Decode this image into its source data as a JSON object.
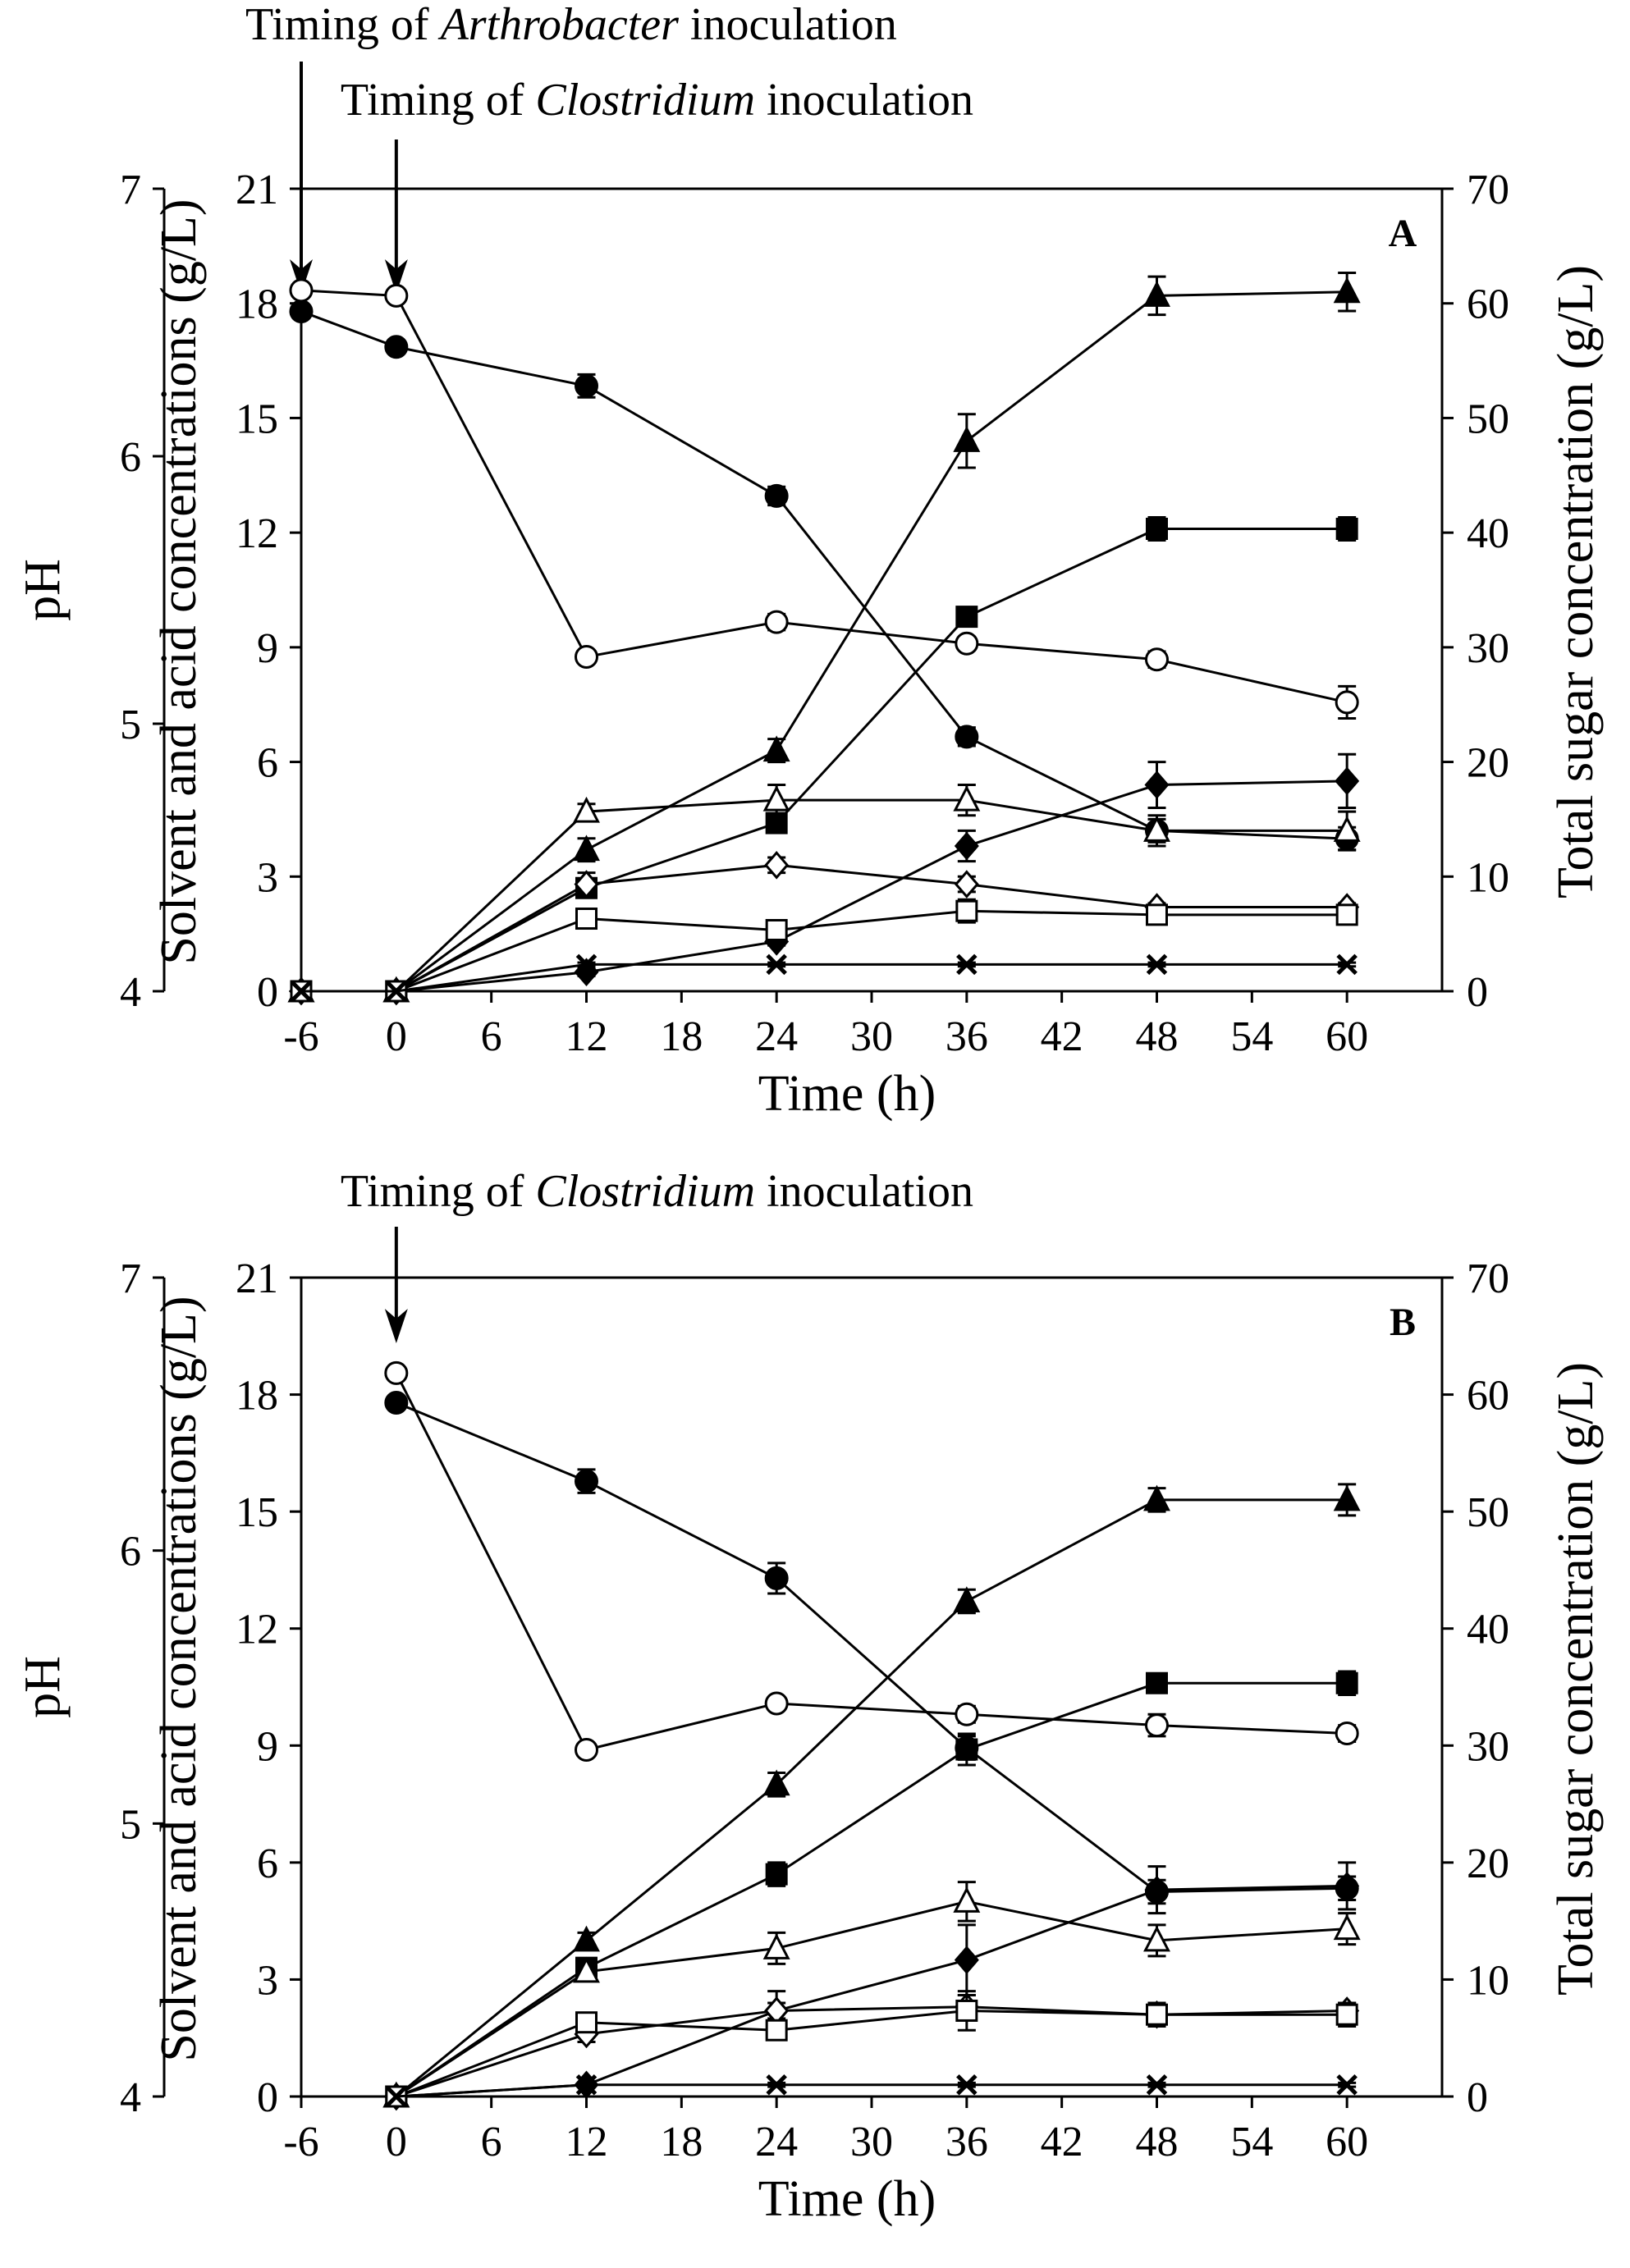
{
  "figure": {
    "panels": [
      {
        "id": "A",
        "panel_label": "A",
        "annotations": [
          {
            "text_before": "Timing of ",
            "text_italic": "Arthrobacter",
            "text_after": " inoculation",
            "x": -6
          },
          {
            "text_before": "Timing of ",
            "text_italic": "Clostridium",
            "text_after": " inoculation",
            "x": 0
          }
        ]
      },
      {
        "id": "B",
        "panel_label": "B",
        "annotations": [
          {
            "text_before": "Timing of ",
            "text_italic": "Clostridium",
            "text_after": " inoculation",
            "x": 0
          }
        ]
      }
    ]
  },
  "chart_data": [
    {
      "type": "line",
      "panel": "A",
      "xlabel": "Time (h)",
      "ylabel_left_outer": "pH",
      "ylabel_left_inner": "Solvent and acid concentrations (g/L)",
      "ylabel_right": "Total sugar concentration (g/L)",
      "xlim": [
        -6,
        66
      ],
      "xticks": [
        -6,
        0,
        6,
        12,
        18,
        24,
        30,
        36,
        42,
        48,
        54,
        60
      ],
      "ylim_ph": [
        4,
        7
      ],
      "yticks_ph": [
        4,
        5,
        6,
        7
      ],
      "ylim_conc": [
        0,
        21
      ],
      "yticks_conc": [
        0,
        3,
        6,
        9,
        12,
        15,
        18,
        21
      ],
      "ylim_sugar": [
        0,
        70
      ],
      "yticks_sugar": [
        0,
        10,
        20,
        30,
        40,
        50,
        60,
        70
      ],
      "series": [
        {
          "marker": "circle-filled",
          "axis": "sugar",
          "x": [
            -6,
            0,
            12,
            24,
            36,
            48,
            60
          ],
          "y": [
            59.3,
            56.2,
            52.8,
            43.2,
            22.2,
            14.0,
            13.3
          ],
          "err": [
            0.5,
            0.5,
            1.0,
            0.8,
            0.8,
            1.0,
            1.0
          ]
        },
        {
          "marker": "circle-open",
          "axis": "ph",
          "x": [
            -6,
            0,
            12,
            24,
            36,
            48,
            60
          ],
          "y": [
            6.62,
            6.6,
            5.25,
            5.38,
            5.3,
            5.24,
            5.08
          ],
          "err": [
            0.01,
            0.02,
            0.02,
            0.03,
            0.02,
            0.03,
            0.06
          ]
        },
        {
          "marker": "triangle-filled",
          "axis": "conc",
          "x": [
            -6,
            0,
            12,
            24,
            36,
            48,
            60
          ],
          "y": [
            0,
            0,
            3.7,
            6.3,
            14.4,
            18.2,
            18.3
          ],
          "err": [
            0,
            0,
            0.3,
            0.3,
            0.7,
            0.5,
            0.5
          ]
        },
        {
          "marker": "square-filled",
          "axis": "conc",
          "x": [
            -6,
            0,
            12,
            24,
            36,
            48,
            60
          ],
          "y": [
            0,
            0,
            2.7,
            4.4,
            9.8,
            12.1,
            12.1
          ],
          "err": [
            0,
            0,
            0.2,
            0.2,
            0.2,
            0.3,
            0.3
          ]
        },
        {
          "marker": "diamond-filled",
          "axis": "conc",
          "x": [
            -6,
            0,
            12,
            24,
            36,
            48,
            60
          ],
          "y": [
            0,
            0,
            0.5,
            1.3,
            3.8,
            5.4,
            5.5
          ],
          "err": [
            0,
            0,
            0.1,
            0.1,
            0.4,
            0.6,
            0.7
          ]
        },
        {
          "marker": "triangle-open",
          "axis": "conc",
          "x": [
            -6,
            0,
            12,
            24,
            36,
            48,
            60
          ],
          "y": [
            0,
            0,
            4.7,
            5.0,
            5.0,
            4.2,
            4.2
          ],
          "err": [
            0,
            0,
            0.2,
            0.4,
            0.4,
            0.4,
            0.5
          ]
        },
        {
          "marker": "diamond-open",
          "axis": "conc",
          "x": [
            -6,
            0,
            12,
            24,
            36,
            48,
            60
          ],
          "y": [
            0,
            0,
            2.8,
            3.3,
            2.8,
            2.2,
            2.2
          ],
          "err": [
            0,
            0,
            0.3,
            0.2,
            0.2,
            0.1,
            0.1
          ]
        },
        {
          "marker": "square-open",
          "axis": "conc",
          "x": [
            -6,
            0,
            12,
            24,
            36,
            48,
            60
          ],
          "y": [
            0,
            0,
            1.9,
            1.6,
            2.1,
            2.0,
            2.0
          ],
          "err": [
            0,
            0,
            0.2,
            0.2,
            0.3,
            0.2,
            0.2
          ]
        },
        {
          "marker": "x",
          "axis": "conc",
          "x": [
            -6,
            0,
            12,
            24,
            36,
            48,
            60
          ],
          "y": [
            0,
            0,
            0.7,
            0.7,
            0.7,
            0.7,
            0.7
          ],
          "err": [
            0,
            0,
            0.05,
            0.05,
            0.05,
            0.05,
            0.05
          ]
        }
      ]
    },
    {
      "type": "line",
      "panel": "B",
      "xlabel": "Time (h)",
      "ylabel_left_outer": "pH",
      "ylabel_left_inner": "Solvent and acid concentrations (g/L)",
      "ylabel_right": "Total sugar concentration (g/L)",
      "xlim": [
        -6,
        66
      ],
      "xticks": [
        -6,
        0,
        6,
        12,
        18,
        24,
        30,
        36,
        42,
        48,
        54,
        60
      ],
      "ylim_ph": [
        4,
        7
      ],
      "yticks_ph": [
        4,
        5,
        6,
        7
      ],
      "ylim_conc": [
        0,
        21
      ],
      "yticks_conc": [
        0,
        3,
        6,
        9,
        12,
        15,
        18,
        21
      ],
      "ylim_sugar": [
        0,
        70
      ],
      "yticks_sugar": [
        0,
        10,
        20,
        30,
        40,
        50,
        60,
        70
      ],
      "series": [
        {
          "marker": "circle-filled",
          "axis": "sugar",
          "x": [
            0,
            12,
            24,
            36,
            48,
            60
          ],
          "y": [
            59.3,
            52.6,
            44.3,
            29.8,
            17.5,
            17.8
          ],
          "err": [
            0.5,
            1.0,
            1.3,
            1.0,
            1.0,
            1.0
          ]
        },
        {
          "marker": "circle-open",
          "axis": "ph",
          "x": [
            0,
            12,
            24,
            36,
            48,
            60
          ],
          "y": [
            6.65,
            5.27,
            5.44,
            5.4,
            5.36,
            5.33
          ],
          "err": [
            0.02,
            0.02,
            0.02,
            0.03,
            0.04,
            0.03
          ]
        },
        {
          "marker": "triangle-filled",
          "axis": "conc",
          "x": [
            0,
            12,
            24,
            36,
            48,
            60
          ],
          "y": [
            0,
            4.0,
            8.0,
            12.7,
            15.3,
            15.3
          ],
          "err": [
            0,
            0.2,
            0.3,
            0.3,
            0.3,
            0.4
          ]
        },
        {
          "marker": "square-filled",
          "axis": "conc",
          "x": [
            0,
            12,
            24,
            36,
            48,
            60
          ],
          "y": [
            0,
            3.3,
            5.7,
            8.9,
            10.6,
            10.6
          ],
          "err": [
            0,
            0.2,
            0.3,
            0.4,
            0.2,
            0.3
          ]
        },
        {
          "marker": "diamond-filled",
          "axis": "conc",
          "x": [
            0,
            12,
            24,
            36,
            48,
            60
          ],
          "y": [
            0,
            0.3,
            2.2,
            3.5,
            5.3,
            5.4
          ],
          "err": [
            0,
            0.05,
            0.5,
            0.9,
            0.6,
            0.6
          ]
        },
        {
          "marker": "triangle-open",
          "axis": "conc",
          "x": [
            0,
            12,
            24,
            36,
            48,
            60
          ],
          "y": [
            0,
            3.2,
            3.8,
            5.0,
            4.0,
            4.3
          ],
          "err": [
            0,
            0.2,
            0.4,
            0.5,
            0.4,
            0.4
          ]
        },
        {
          "marker": "diamond-open",
          "axis": "conc",
          "x": [
            0,
            12,
            24,
            36,
            48,
            60
          ],
          "y": [
            0,
            1.6,
            2.2,
            2.3,
            2.1,
            2.2
          ],
          "err": [
            0,
            0.2,
            0.2,
            0.3,
            0.2,
            0.2
          ]
        },
        {
          "marker": "square-open",
          "axis": "conc",
          "x": [
            0,
            12,
            24,
            36,
            48,
            60
          ],
          "y": [
            0,
            1.9,
            1.7,
            2.2,
            2.1,
            2.1
          ],
          "err": [
            0,
            0.2,
            0.2,
            0.5,
            0.3,
            0.3
          ]
        },
        {
          "marker": "x",
          "axis": "conc",
          "x": [
            0,
            12,
            24,
            36,
            48,
            60
          ],
          "y": [
            0,
            0.3,
            0.3,
            0.3,
            0.3,
            0.3
          ],
          "err": [
            0,
            0.05,
            0.05,
            0.05,
            0.05,
            0.05
          ]
        }
      ]
    }
  ]
}
